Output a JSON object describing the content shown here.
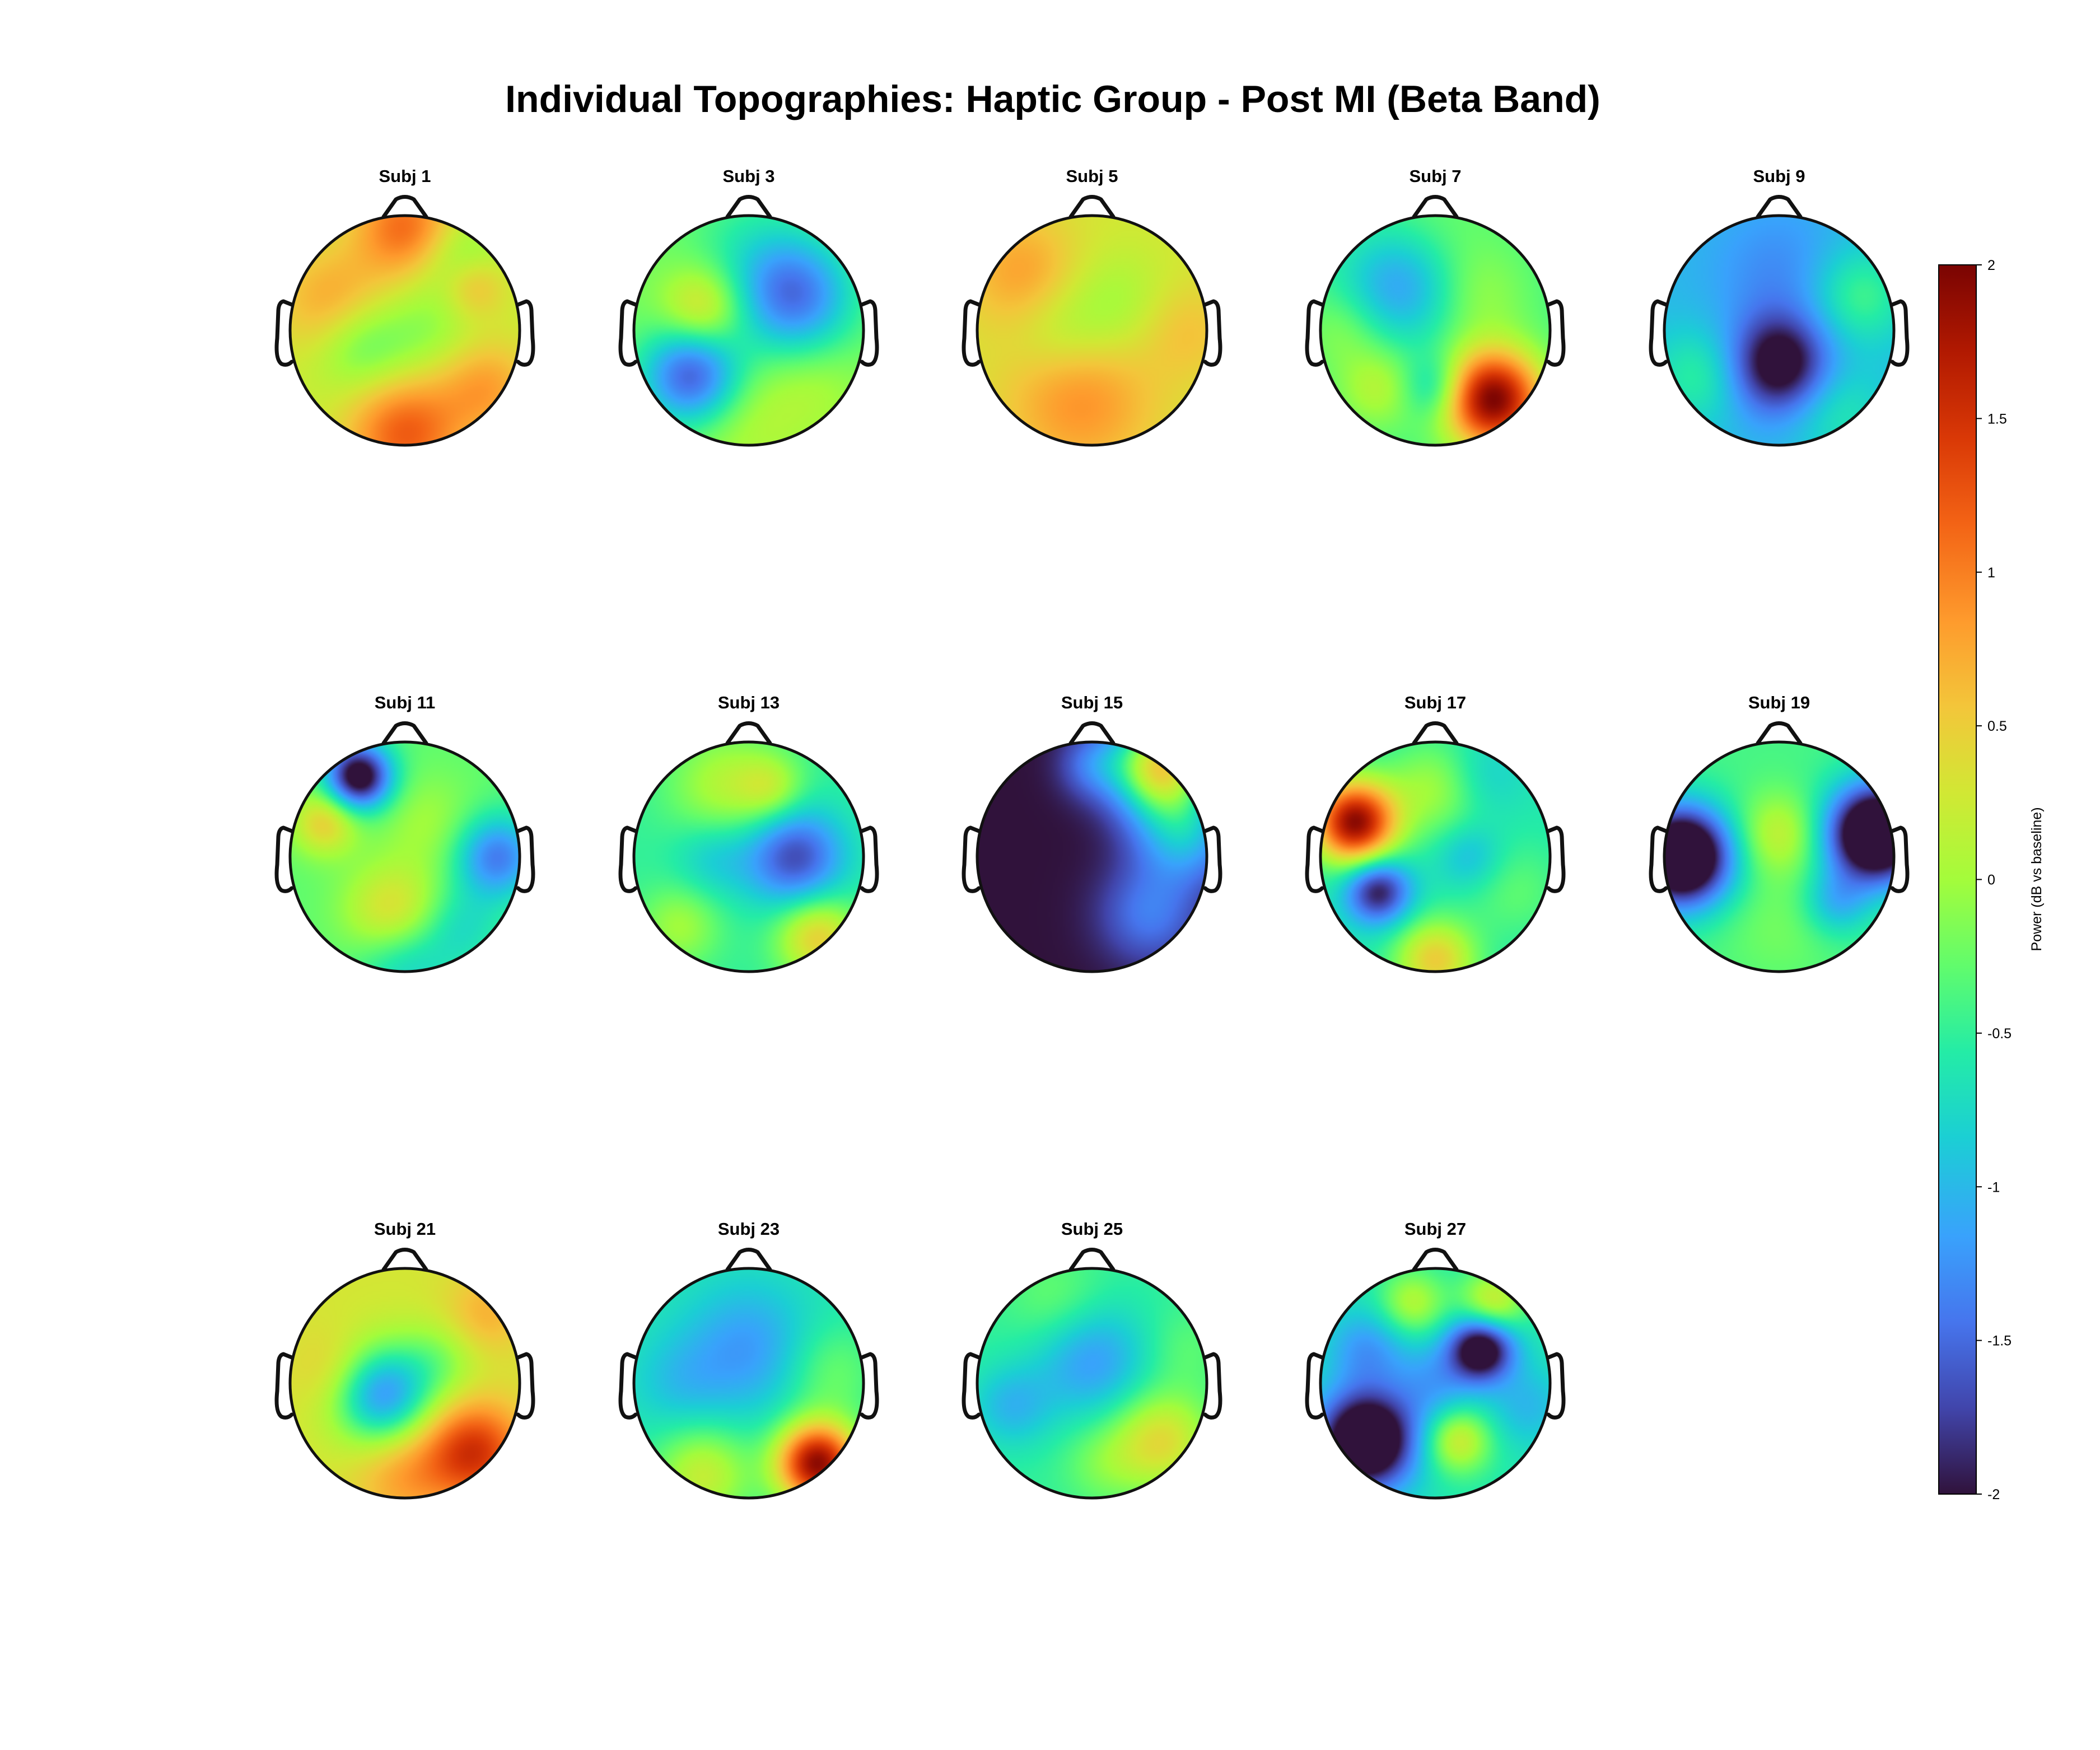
{
  "chart_data": {
    "type": "heatmap",
    "title": "Individual Topographies: Haptic Group - Post MI (Beta Band)",
    "colorbar": {
      "label": "Power (dB vs baseline)",
      "range": [
        -2,
        2
      ],
      "ticks": [
        2,
        1.5,
        1,
        0.5,
        0,
        -0.5,
        -1,
        -1.5,
        -2
      ],
      "tick_labels": [
        "2",
        "1.5",
        "1",
        "0.5",
        "0",
        "-0.5",
        "-1",
        "-1.5",
        "-2"
      ],
      "colormap": "turbo",
      "placement": "right"
    },
    "layout": {
      "rows": 3,
      "cols": 5
    },
    "subjects": [
      {
        "label": "Subj 1",
        "base": 0.2,
        "blobs": [
          [
            0.0,
            0.9,
            0.3,
            0.9
          ],
          [
            -0.6,
            0.2,
            0.35,
            0.7
          ],
          [
            0.0,
            -0.9,
            0.35,
            1.0
          ],
          [
            0.7,
            -0.5,
            0.3,
            0.6
          ],
          [
            0.6,
            0.4,
            0.2,
            0.6
          ],
          [
            -0.4,
            -0.1,
            0.3,
            -0.7
          ],
          [
            0.5,
            0.6,
            0.25,
            -0.5
          ],
          [
            0.2,
            0.0,
            0.3,
            -0.3
          ]
        ]
      },
      {
        "label": "Subj 3",
        "base": -0.2,
        "blobs": [
          [
            0.4,
            0.3,
            0.35,
            -1.2
          ],
          [
            -0.5,
            -0.4,
            0.3,
            -1.4
          ],
          [
            -0.4,
            0.2,
            0.25,
            0.7
          ],
          [
            0.0,
            -0.8,
            0.4,
            0.3
          ],
          [
            0.6,
            -0.5,
            0.3,
            0.2
          ],
          [
            0.0,
            0.7,
            0.4,
            -0.3
          ]
        ]
      },
      {
        "label": "Subj 5",
        "base": 0.3,
        "blobs": [
          [
            -0.1,
            -0.6,
            0.45,
            0.6
          ],
          [
            -0.6,
            0.5,
            0.35,
            0.5
          ],
          [
            0.2,
            0.2,
            0.35,
            -0.35
          ],
          [
            -0.3,
            0.0,
            0.3,
            -0.3
          ],
          [
            0.8,
            0.0,
            0.3,
            0.3
          ]
        ]
      },
      {
        "label": "Subj 7",
        "base": -0.4,
        "blobs": [
          [
            0.5,
            -0.6,
            0.3,
            2.4
          ],
          [
            -0.3,
            0.4,
            0.35,
            -0.8
          ],
          [
            0.0,
            0.8,
            0.4,
            0.2
          ],
          [
            -0.5,
            -0.5,
            0.25,
            0.5
          ],
          [
            0.0,
            -0.5,
            0.2,
            -0.6
          ],
          [
            0.4,
            0.3,
            0.3,
            0.3
          ],
          [
            -0.8,
            0.0,
            0.25,
            0.3
          ]
        ]
      },
      {
        "label": "Subj 9",
        "base": -1.0,
        "blobs": [
          [
            0.0,
            -0.3,
            0.3,
            -1.3
          ],
          [
            0.0,
            0.5,
            0.4,
            -0.3
          ],
          [
            0.7,
            0.3,
            0.3,
            0.6
          ],
          [
            -0.7,
            -0.4,
            0.3,
            0.5
          ],
          [
            0.5,
            -0.7,
            0.3,
            0.4
          ]
        ]
      },
      {
        "label": "Subj 11",
        "base": -0.3,
        "blobs": [
          [
            -0.4,
            0.7,
            0.2,
            -2.0
          ],
          [
            0.8,
            0.0,
            0.25,
            -1.1
          ],
          [
            -0.1,
            -0.5,
            0.3,
            0.8
          ],
          [
            -0.7,
            0.3,
            0.2,
            0.8
          ],
          [
            0.2,
            0.3,
            0.3,
            0.3
          ],
          [
            0.0,
            -0.9,
            0.3,
            -0.6
          ],
          [
            0.5,
            -0.6,
            0.25,
            -0.4
          ]
        ]
      },
      {
        "label": "Subj 13",
        "base": -0.5,
        "blobs": [
          [
            0.4,
            0.0,
            0.3,
            -1.2
          ],
          [
            -0.2,
            0.6,
            0.35,
            0.6
          ],
          [
            0.6,
            -0.7,
            0.25,
            1.0
          ],
          [
            -0.6,
            -0.6,
            0.25,
            0.5
          ],
          [
            0.2,
            0.6,
            0.2,
            0.5
          ],
          [
            -0.3,
            0.0,
            0.25,
            -0.4
          ]
        ]
      },
      {
        "label": "Subj 15",
        "base": -2.0,
        "blobs": [
          [
            0.6,
            0.8,
            0.3,
            2.4
          ],
          [
            0.8,
            0.2,
            0.3,
            1.0
          ],
          [
            0.5,
            -0.5,
            0.3,
            0.6
          ],
          [
            0.0,
            0.8,
            0.2,
            0.5
          ]
        ]
      },
      {
        "label": "Subj 17",
        "base": -0.6,
        "blobs": [
          [
            -0.7,
            0.3,
            0.25,
            2.5
          ],
          [
            -0.5,
            -0.3,
            0.2,
            -1.4
          ],
          [
            0.0,
            -0.9,
            0.25,
            1.1
          ],
          [
            0.0,
            0.6,
            0.3,
            0.6
          ],
          [
            0.3,
            0.0,
            0.2,
            -0.4
          ],
          [
            0.7,
            -0.3,
            0.3,
            0.3
          ],
          [
            0.4,
            0.7,
            0.25,
            -0.3
          ]
        ]
      },
      {
        "label": "Subj 19",
        "base": -0.4,
        "blobs": [
          [
            -0.85,
            0.0,
            0.3,
            -2.6
          ],
          [
            0.85,
            0.2,
            0.3,
            -2.6
          ],
          [
            0.0,
            0.2,
            0.25,
            0.6
          ],
          [
            0.0,
            -0.6,
            0.35,
            0.2
          ],
          [
            0.5,
            -0.4,
            0.2,
            -0.6
          ]
        ]
      },
      {
        "label": "Subj 21",
        "base": 0.3,
        "blobs": [
          [
            -0.2,
            -0.1,
            0.3,
            -1.5
          ],
          [
            0.6,
            -0.6,
            0.3,
            1.2
          ],
          [
            0.7,
            0.6,
            0.25,
            0.4
          ],
          [
            -0.6,
            0.1,
            0.25,
            0.3
          ],
          [
            0.0,
            -0.8,
            0.3,
            0.5
          ],
          [
            0.3,
            0.2,
            0.25,
            -0.4
          ]
        ]
      },
      {
        "label": "Subj 23",
        "base": -0.6,
        "blobs": [
          [
            0.6,
            -0.7,
            0.25,
            2.5
          ],
          [
            0.0,
            0.3,
            0.4,
            -0.6
          ],
          [
            -0.4,
            -0.8,
            0.3,
            0.8
          ],
          [
            0.7,
            0.1,
            0.3,
            0.4
          ],
          [
            -0.6,
            0.0,
            0.3,
            -0.3
          ]
        ]
      },
      {
        "label": "Subj 25",
        "base": -0.5,
        "blobs": [
          [
            0.0,
            0.2,
            0.35,
            -0.7
          ],
          [
            0.6,
            -0.5,
            0.3,
            0.9
          ],
          [
            -0.7,
            -0.2,
            0.25,
            -0.5
          ],
          [
            -0.3,
            0.7,
            0.3,
            0.3
          ],
          [
            0.8,
            0.3,
            0.25,
            0.2
          ],
          [
            0.1,
            -0.7,
            0.25,
            0.3
          ]
        ]
      },
      {
        "label": "Subj 27",
        "base": -0.6,
        "blobs": [
          [
            -0.6,
            -0.5,
            0.3,
            -2.2
          ],
          [
            0.4,
            0.3,
            0.2,
            -1.8
          ],
          [
            0.2,
            -0.5,
            0.2,
            0.9
          ],
          [
            0.5,
            0.7,
            0.2,
            0.9
          ],
          [
            -0.2,
            0.7,
            0.2,
            0.7
          ],
          [
            -0.6,
            0.3,
            0.25,
            -0.6
          ],
          [
            0.0,
            0.0,
            0.25,
            -0.5
          ],
          [
            0.8,
            -0.2,
            0.25,
            -0.4
          ]
        ]
      }
    ]
  }
}
